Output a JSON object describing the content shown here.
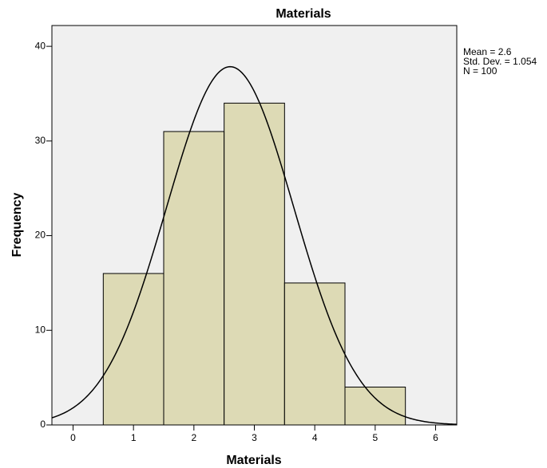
{
  "chart_data": {
    "type": "histogram",
    "title": "Materials",
    "x_label": "Materials",
    "y_label": "Frequency",
    "bins": [
      0.5,
      1.5,
      2.5,
      3.5,
      4.5,
      5.5
    ],
    "counts": [
      16,
      31,
      34,
      15,
      4
    ],
    "color": "#d9d6aa",
    "xlim": [
      -0.35,
      6.35
    ],
    "xticks": [
      0,
      1,
      2,
      3,
      4,
      5,
      6
    ],
    "ylim": [
      0,
      42.2
    ],
    "yticks": [
      0,
      10,
      20,
      30,
      40
    ],
    "stats": [
      {
        "value": 2.6,
        "label": "Mean = 2.6"
      },
      {
        "value": 1.054,
        "label": "Std. Dev. = 1.054"
      },
      {
        "value": 100,
        "label": "N = 100"
      }
    ],
    "normal_curve": true
  }
}
